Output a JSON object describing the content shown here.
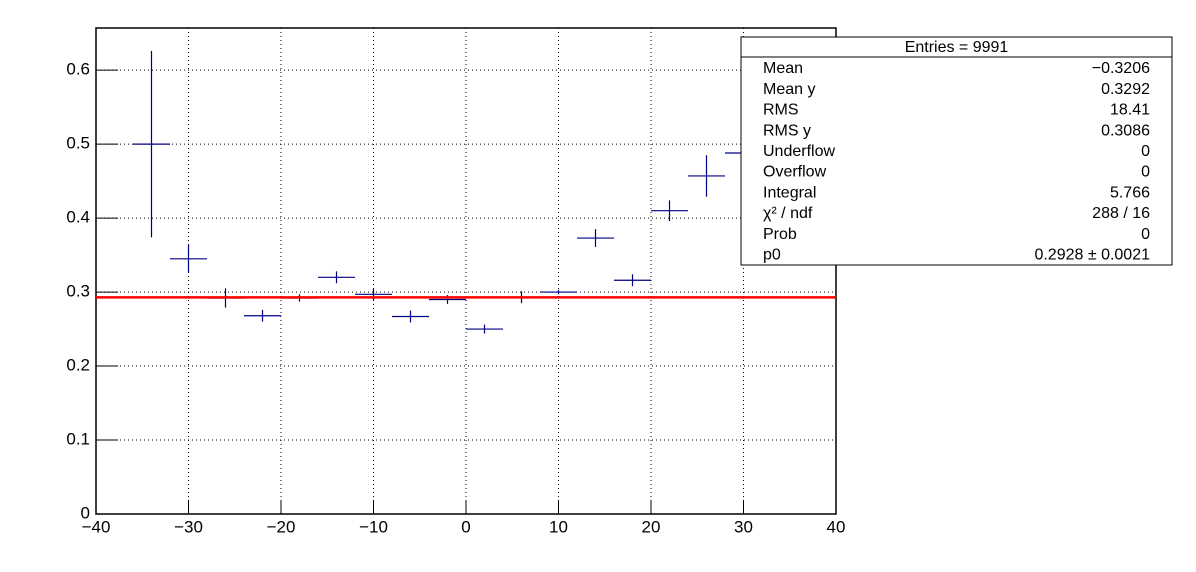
{
  "chart_data": {
    "type": "profile",
    "xlim": [
      -40,
      40
    ],
    "ylim": [
      0,
      0.657
    ],
    "xticks": [
      {
        "value": -40,
        "label": "−40"
      },
      {
        "value": -30,
        "label": "−30"
      },
      {
        "value": -20,
        "label": "−20"
      },
      {
        "value": -10,
        "label": "−10"
      },
      0,
      10,
      20,
      30,
      40
    ],
    "yticks": [
      0,
      0.1,
      0.2,
      0.3,
      0.4,
      0.5,
      0.6
    ],
    "grid": true,
    "series": [
      {
        "color": "#000080",
        "x": [
          -34,
          -30,
          -26,
          -22,
          -18,
          -14,
          -10,
          -6,
          -2,
          2,
          6,
          10,
          14,
          18,
          22,
          26,
          30
        ],
        "xerr": [
          2,
          2,
          2,
          2,
          2,
          2,
          2,
          2,
          2,
          2,
          2,
          2,
          2,
          2,
          2,
          2,
          2
        ],
        "values": [
          0.5,
          0.345,
          0.292,
          0.268,
          0.292,
          0.32,
          0.297,
          0.267,
          0.29,
          0.25,
          0.293,
          0.3,
          0.373,
          0.316,
          0.41,
          0.457,
          0.488
        ],
        "errors": [
          0.126,
          0.019,
          0.013,
          0.008,
          0.005,
          0.008,
          0.008,
          0.008,
          0.006,
          0.006,
          0.008,
          0.003,
          0.012,
          0.008,
          0.014,
          0.028,
          0.02
        ]
      }
    ],
    "fit": {
      "value": 0.2928,
      "error": 0.0021,
      "label": "0.2928 ± 0.0021",
      "color": "#ff0000"
    },
    "stats": {
      "title": "Entries = 9991",
      "rows": [
        [
          "Mean",
          "−0.3206"
        ],
        [
          "Mean y",
          "0.3292"
        ],
        [
          "RMS",
          "18.41"
        ],
        [
          "RMS y",
          "0.3086"
        ],
        [
          "Underflow",
          "0"
        ],
        [
          "Overflow",
          "0"
        ],
        [
          "Integral",
          "5.766"
        ],
        [
          "χ² / ndf",
          "288 / 16"
        ],
        [
          "Prob",
          "0"
        ],
        [
          "p0"
        ]
      ]
    }
  }
}
